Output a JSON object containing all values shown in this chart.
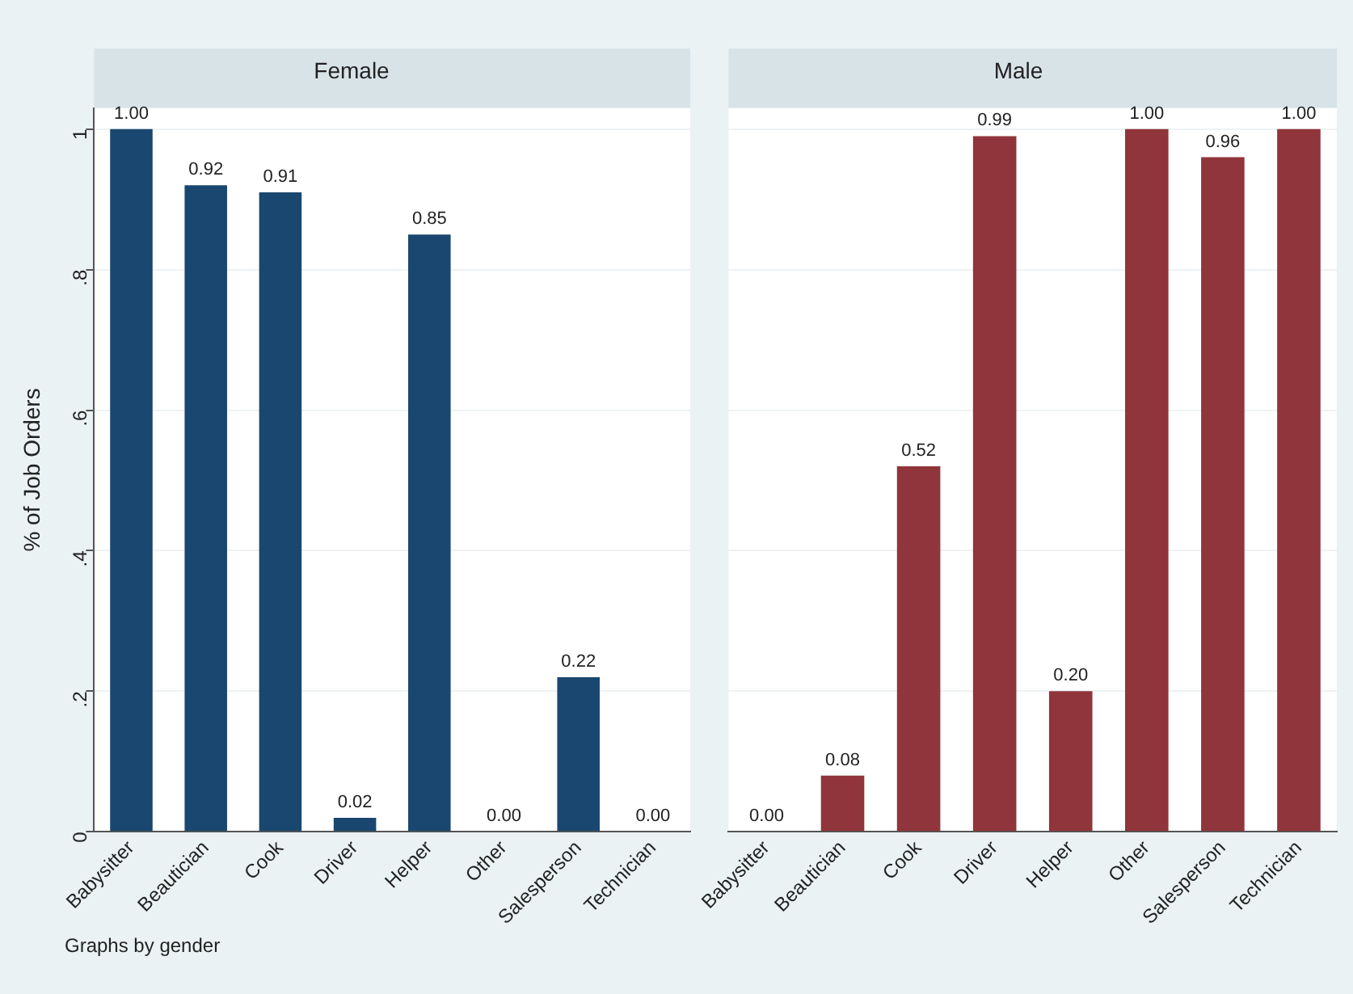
{
  "chart_data": [
    {
      "type": "bar",
      "title": "Female",
      "ylabel": "% of Job Orders",
      "categories": [
        "Babysitter",
        "Beautician",
        "Cook",
        "Driver",
        "Helper",
        "Other",
        "Salesperson",
        "Technician"
      ],
      "values": [
        1.0,
        0.92,
        0.91,
        0.02,
        0.85,
        0.0,
        0.22,
        0.0
      ],
      "value_labels": [
        "1.00",
        "0.92",
        "0.91",
        "0.02",
        "0.85",
        "0.00",
        "0.22",
        "0.00"
      ],
      "color": "#1a476f",
      "ylim": [
        0,
        1.03
      ],
      "yticks": [
        0,
        {
          "value": 0.2,
          "label": ".2"
        },
        {
          "value": 0.4,
          "label": ".4"
        },
        {
          "value": 0.6,
          "label": ".6"
        },
        {
          "value": 0.8,
          "label": ".8"
        },
        1
      ],
      "grid": "y",
      "annotations": [
        "Graphs by gender"
      ]
    },
    {
      "type": "bar",
      "title": "Male",
      "categories": [
        "Babysitter",
        "Beautician",
        "Cook",
        "Driver",
        "Helper",
        "Other",
        "Salesperson",
        "Technician"
      ],
      "values": [
        0.0,
        0.08,
        0.52,
        0.99,
        0.2,
        1.0,
        0.96,
        1.0
      ],
      "value_labels": [
        "0.00",
        "0.08",
        "0.52",
        "0.99",
        "0.20",
        "1.00",
        "0.96",
        "1.00"
      ],
      "color": "#90353b",
      "ylim": [
        0,
        1.03
      ],
      "yticks": [
        0,
        0.2,
        0.4,
        0.6,
        0.8,
        1
      ],
      "grid": "y",
      "tick_labels": "x"
    }
  ]
}
